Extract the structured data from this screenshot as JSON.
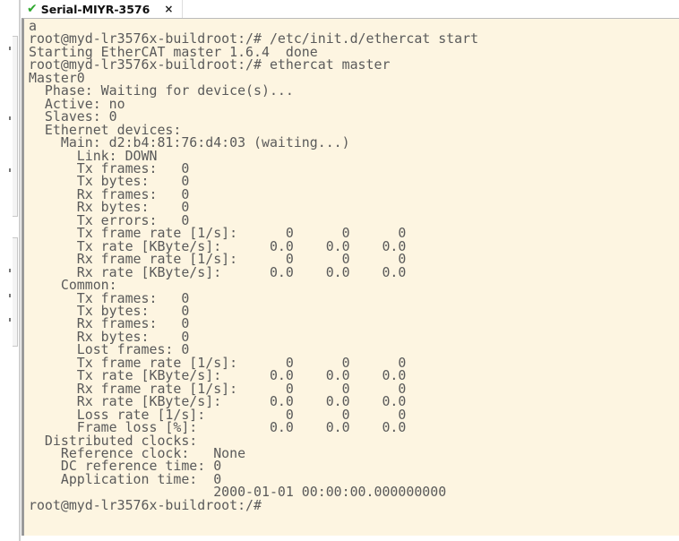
{
  "tab": {
    "title": "Serial-MIYR-3576",
    "status_icon": "check-icon",
    "status_color": "#2ea82e",
    "close_label": "×"
  },
  "terminal": {
    "background": "#fdf5e1",
    "lines": [
      "a",
      "root@myd-lr3576x-buildroot:/# /etc/init.d/ethercat start",
      "Starting EtherCAT master 1.6.4  done",
      "root@myd-lr3576x-buildroot:/# ethercat master",
      "Master0",
      "  Phase: Waiting for device(s)...",
      "  Active: no",
      "  Slaves: 0",
      "  Ethernet devices:",
      "    Main: d2:b4:81:76:d4:03 (waiting...)",
      "      Link: DOWN",
      "      Tx frames:   0",
      "      Tx bytes:    0",
      "      Rx frames:   0",
      "      Rx bytes:    0",
      "      Tx errors:   0",
      "      Tx frame rate [1/s]:      0      0      0",
      "      Tx rate [KByte/s]:      0.0    0.0    0.0",
      "      Rx frame rate [1/s]:      0      0      0",
      "      Rx rate [KByte/s]:      0.0    0.0    0.0",
      "    Common:",
      "      Tx frames:   0",
      "      Tx bytes:    0",
      "      Rx frames:   0",
      "      Rx bytes:    0",
      "      Lost frames: 0",
      "      Tx frame rate [1/s]:      0      0      0",
      "      Tx rate [KByte/s]:      0.0    0.0    0.0",
      "      Rx frame rate [1/s]:      0      0      0",
      "      Rx rate [KByte/s]:      0.0    0.0    0.0",
      "      Loss rate [1/s]:          0      0      0",
      "      Frame loss [%]:         0.0    0.0    0.0",
      "  Distributed clocks:",
      "    Reference clock:   None",
      "    DC reference time: 0",
      "    Application time:  0",
      "                       2000-01-01 00:00:00.000000000",
      "root@myd-lr3576x-buildroot:/#"
    ]
  }
}
